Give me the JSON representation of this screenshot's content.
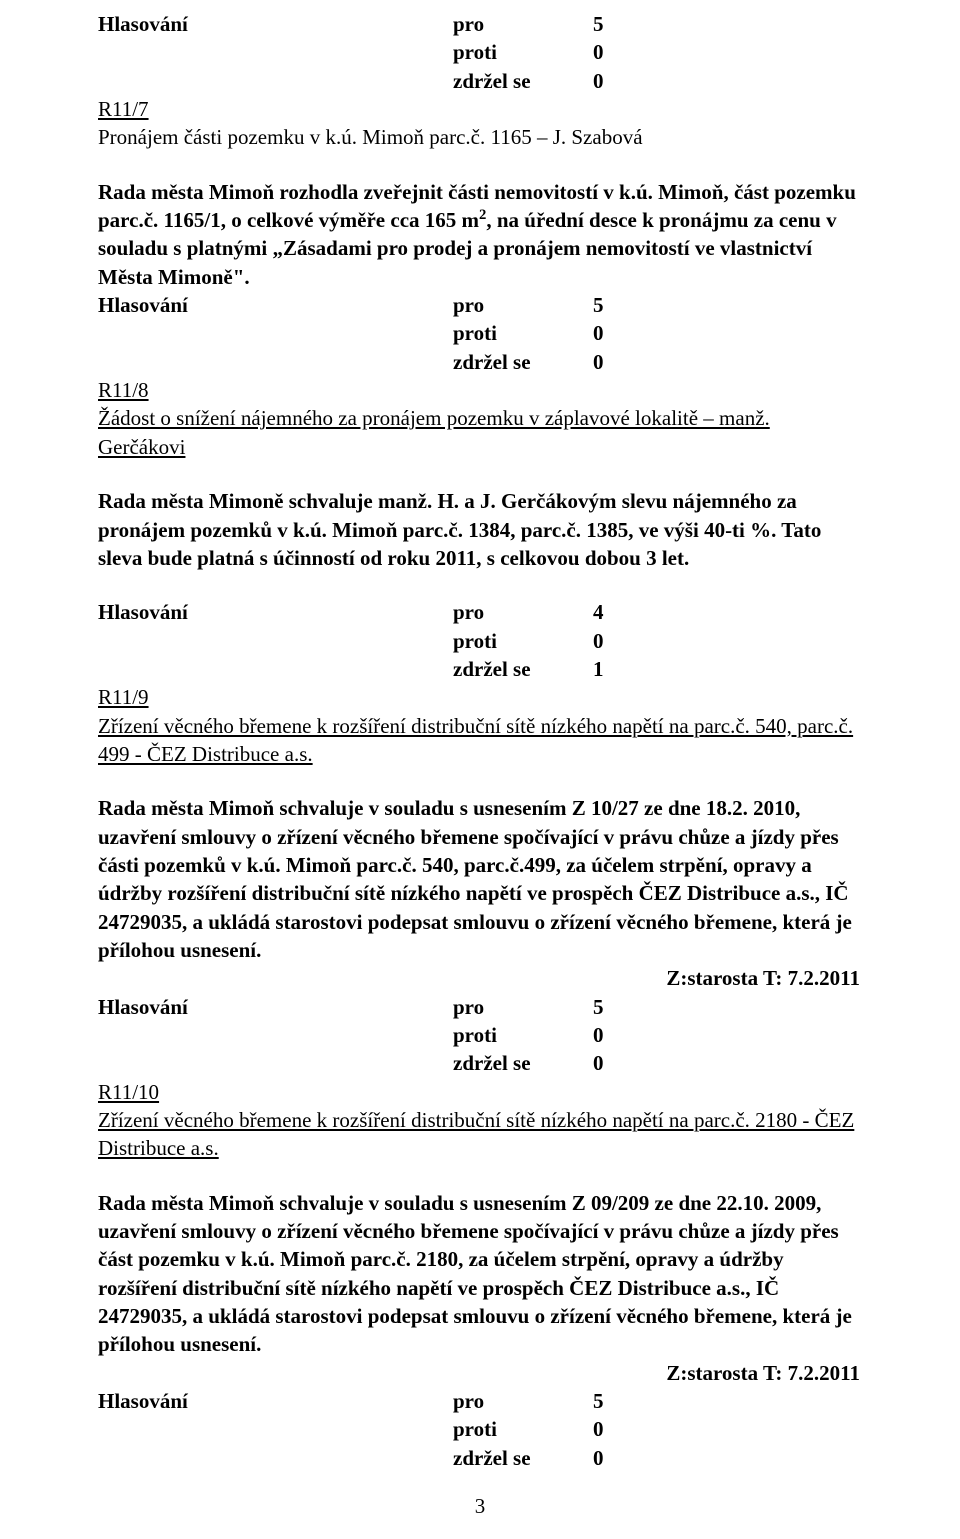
{
  "doc": {
    "font_family": "Times New Roman",
    "foreground": "#000000",
    "background": "#ffffff",
    "page_number": "3"
  },
  "vote": {
    "label": "Hlasování",
    "pro": "pro",
    "proti": "proti",
    "zdrzel": "zdržel se",
    "v5": "5",
    "v0": "0",
    "v4": "4",
    "v1": "1"
  },
  "r117": {
    "id": "R11/7",
    "title": "Pronájem části pozemku v k.ú. Mimoň parc.č. 1165 – J. Szabová",
    "para_a": "Rada města Mimoň rozhodla zveřejnit části nemovitostí v k.ú. Mimoň, část pozemku parc.č. 1165/1, o celkové výměře cca 165 m",
    "para_b": ", na úřední desce k pronájmu za cenu v souladu s platnými „Zásadami pro prodej a pronájem nemovitostí ve vlastnictví Města Mimoně\".",
    "sup": "2"
  },
  "r118": {
    "id": "R11/8",
    "title": "Žádost o snížení nájemného za pronájem pozemku v záplavové lokalitě – manž. Gerčákovi",
    "para": "Rada města Mimoně schvaluje manž. H. a J. Gerčákovým slevu nájemného za pronájem pozemků v k.ú. Mimoň parc.č. 1384, parc.č. 1385, ve výši 40-ti %. Tato sleva bude platná s účinností od roku 2011, s celkovou dobou 3 let."
  },
  "r119": {
    "id": "R11/9",
    "title": "Zřízení věcného břemene k rozšíření distribuční sítě nízkého napětí na parc.č. 540, parc.č. 499 - ČEZ Distribuce a.s.",
    "para": "Rada města Mimoň schvaluje v souladu s usnesením Z 10/27 ze dne 18.2. 2010, uzavření smlouvy o zřízení věcného břemene spočívající v právu chůze a jízdy přes části pozemků v k.ú. Mimoň parc.č. 540, parc.č.499, za účelem strpění, opravy a údržby rozšíření distribuční sítě nízkého napětí ve prospěch ČEZ Distribuce a.s., IČ 24729035, a ukládá starostovi podepsat smlouvu o zřízení věcného břemene, která je přílohou usnesení.",
    "date": "Z:starosta T: 7.2.2011"
  },
  "r1110": {
    "id": "R11/10",
    "title": "Zřízení věcného břemene k rozšíření distribuční sítě nízkého napětí na parc.č. 2180 - ČEZ Distribuce a.s.",
    "para": "Rada města Mimoň schvaluje v souladu s usnesením Z 09/209 ze dne 22.10. 2009, uzavření smlouvy o zřízení věcného břemene spočívající v právu chůze a jízdy přes část pozemku v k.ú. Mimoň parc.č. 2180, za účelem strpění, opravy a údržby rozšíření distribuční sítě nízkého napětí ve prospěch ČEZ Distribuce a.s., IČ 24729035, a ukládá starostovi podepsat smlouvu o zřízení věcného břemene, která je přílohou usnesení.",
    "date": "Z:starosta T: 7.2.2011"
  }
}
